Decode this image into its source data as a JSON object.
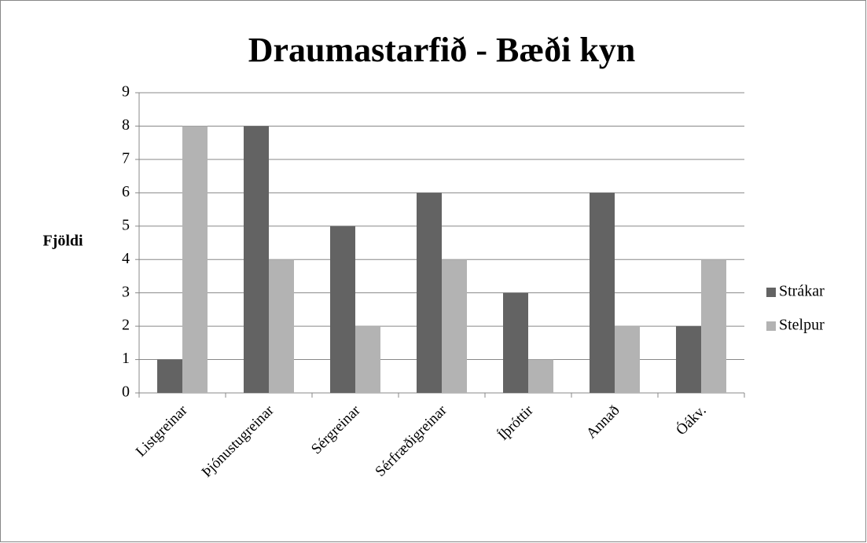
{
  "chart_data": {
    "type": "bar",
    "title": "Draumastarfið - Bæði kyn",
    "ylabel": "Fjöldi",
    "categories": [
      "Listgreinar",
      "Þjónustugreinar",
      "Sérgreinar",
      "Sérfræðigreinar",
      "Íþróttir",
      "Annað",
      "Óákv."
    ],
    "series": [
      {
        "name": "Strákar",
        "color": "#636363",
        "values": [
          1,
          8,
          5,
          6,
          3,
          6,
          2
        ]
      },
      {
        "name": "Stelpur",
        "color": "#b3b3b3",
        "values": [
          8,
          4,
          2,
          4,
          1,
          2,
          4
        ]
      }
    ],
    "ylim": [
      0,
      9
    ],
    "yticks": [
      0,
      1,
      2,
      3,
      4,
      5,
      6,
      7,
      8,
      9
    ],
    "grid": true,
    "legend": "right"
  }
}
